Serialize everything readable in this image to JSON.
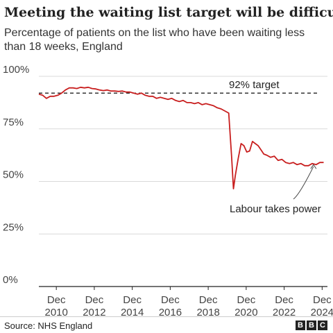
{
  "title": "Meeting the waiting list target will be difficult",
  "subtitle": "Percentage of patients on the list who have been waiting less than 18 weeks, England",
  "source": "Source: NHS England",
  "logo_letters": [
    "B",
    "B",
    "C"
  ],
  "chart_data": {
    "type": "line",
    "ylim": [
      0,
      100
    ],
    "xlim": [
      2010.0,
      2025.2
    ],
    "y_ticks": [
      {
        "value": 0,
        "label": "0%"
      },
      {
        "value": 25,
        "label": "25%"
      },
      {
        "value": 50,
        "label": "50%"
      },
      {
        "value": 75,
        "label": "75%"
      },
      {
        "value": 100,
        "label": "100%"
      }
    ],
    "x_ticks": [
      {
        "value": 2010.92,
        "label": [
          "Dec",
          "2010"
        ]
      },
      {
        "value": 2012.92,
        "label": [
          "Dec",
          "2012"
        ]
      },
      {
        "value": 2014.92,
        "label": [
          "Dec",
          "2014"
        ]
      },
      {
        "value": 2016.92,
        "label": [
          "Dec",
          "2016"
        ]
      },
      {
        "value": 2018.92,
        "label": [
          "Dec",
          "2018"
        ]
      },
      {
        "value": 2020.92,
        "label": [
          "Dec",
          "2020"
        ]
      },
      {
        "value": 2022.92,
        "label": [
          "Dec",
          "2022"
        ]
      },
      {
        "value": 2024.92,
        "label": [
          "Dec",
          "2024"
        ]
      }
    ],
    "target": {
      "value": 92,
      "label": "92% target"
    },
    "annotation": {
      "label": "Labour takes power",
      "x": 2024.5,
      "y": 59
    },
    "colors": {
      "line": "#c81e1e",
      "target": "#333333",
      "grid": "#d9d9d9",
      "axis": "#222222"
    },
    "grid": true,
    "series": [
      {
        "x": [
          2010.0,
          2010.2,
          2010.4,
          2010.6,
          2010.8,
          2011.0,
          2011.2,
          2011.4,
          2011.6,
          2011.8,
          2012.0,
          2012.2,
          2012.4,
          2012.6,
          2012.8,
          2013.0,
          2013.2,
          2013.4,
          2013.6,
          2013.8,
          2014.0,
          2014.2,
          2014.4,
          2014.6,
          2014.8,
          2015.0,
          2015.2,
          2015.4,
          2015.6,
          2015.8,
          2016.0,
          2016.2,
          2016.4,
          2016.6,
          2016.8,
          2017.0,
          2017.2,
          2017.4,
          2017.6,
          2017.8,
          2018.0,
          2018.2,
          2018.4,
          2018.6,
          2018.8,
          2019.0,
          2019.2,
          2019.4,
          2019.6,
          2019.8,
          2020.0,
          2020.15,
          2020.25,
          2020.35,
          2020.5,
          2020.65,
          2020.8,
          2020.95,
          2021.1,
          2021.25,
          2021.4,
          2021.55,
          2021.7,
          2021.85,
          2022.0,
          2022.2,
          2022.4,
          2022.6,
          2022.8,
          2023.0,
          2023.2,
          2023.4,
          2023.6,
          2023.8,
          2024.0,
          2024.2,
          2024.4,
          2024.6,
          2024.8,
          2025.0
        ],
        "values": [
          91.5,
          91.0,
          89.5,
          90.5,
          90.5,
          91.0,
          92.0,
          93.5,
          94.5,
          94.5,
          94.2,
          94.8,
          94.5,
          94.8,
          94.2,
          94.0,
          93.5,
          93.2,
          93.5,
          93.0,
          93.0,
          92.8,
          93.0,
          92.5,
          92.5,
          92.0,
          91.5,
          92.0,
          91.0,
          90.5,
          90.5,
          89.5,
          90.0,
          89.5,
          89.0,
          89.5,
          88.5,
          88.0,
          88.5,
          87.5,
          87.5,
          87.0,
          87.5,
          86.5,
          87.0,
          86.5,
          86.0,
          85.0,
          84.5,
          83.5,
          82.5,
          62.0,
          46.5,
          53.0,
          61.0,
          68.0,
          67.0,
          64.0,
          64.5,
          69.0,
          68.0,
          67.0,
          65.0,
          63.0,
          62.5,
          61.5,
          62.0,
          60.0,
          60.5,
          59.0,
          58.5,
          59.0,
          58.0,
          58.5,
          57.5,
          57.5,
          58.5,
          58.0,
          59.0,
          59.0
        ]
      }
    ]
  }
}
